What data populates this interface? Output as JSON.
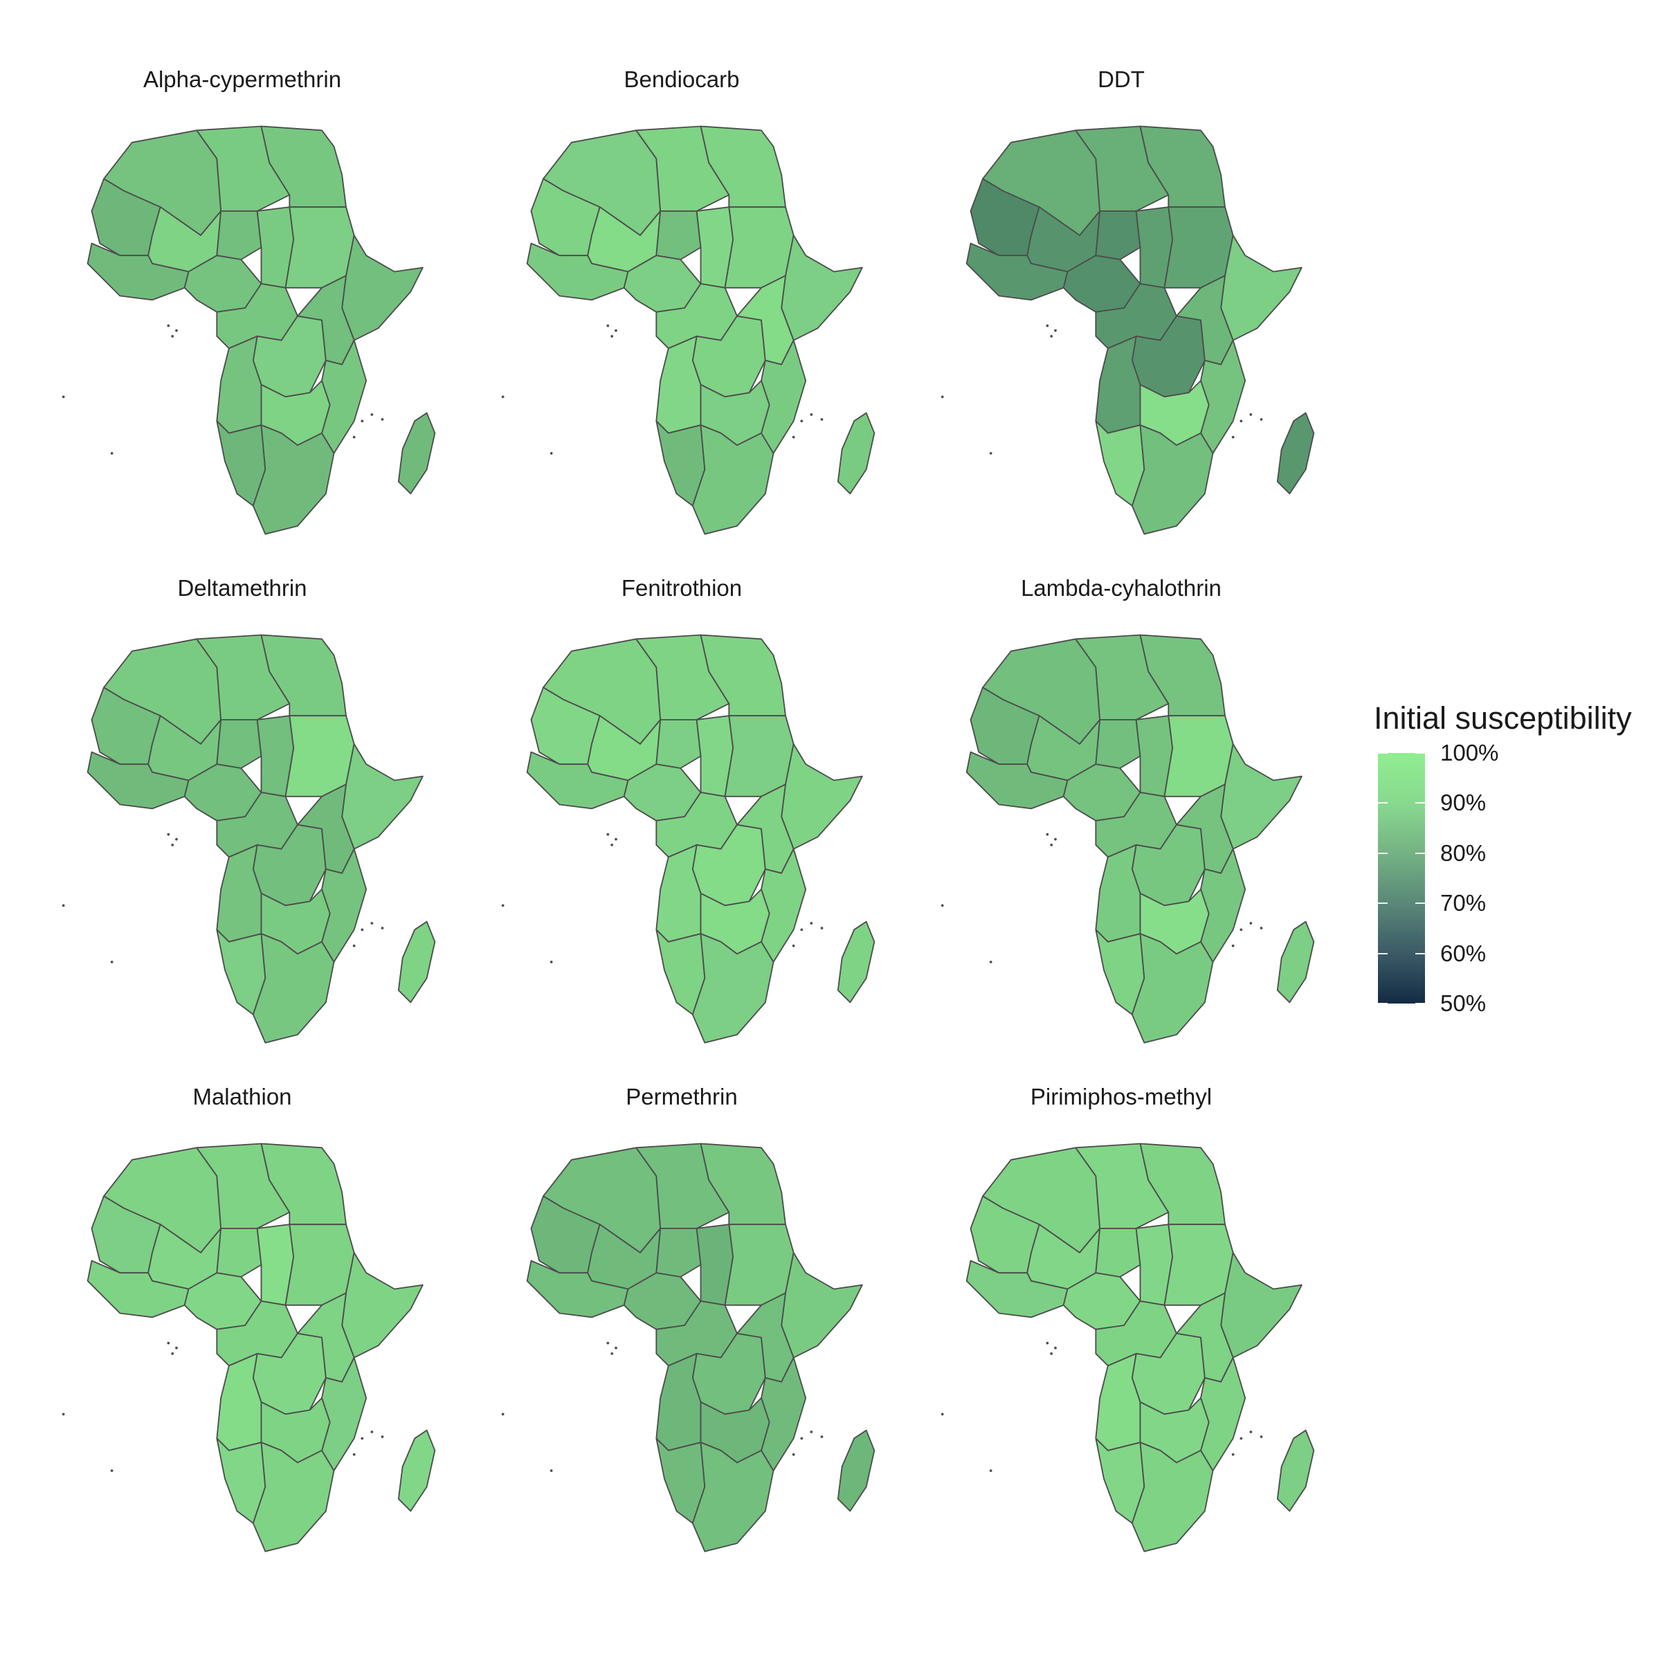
{
  "colors": {
    "scale_high": "#90ee90",
    "scale_low": "#132b43",
    "border": "#4d4d4d",
    "background": "#ffffff"
  },
  "legend": {
    "title": "Initial susceptibility",
    "ticks": [
      "100%",
      "90%",
      "80%",
      "70%",
      "60%",
      "50%"
    ],
    "tick_values": [
      100,
      90,
      80,
      70,
      60,
      50
    ],
    "range": [
      50,
      100
    ]
  },
  "chart_data": [
    {
      "type": "heatmap",
      "title": "Alpha-cypermethrin",
      "map": "Africa",
      "regions": {
        "north_west": 89,
        "north_central": 91,
        "east_north": 90,
        "mauritania": 86,
        "sahel_mid": 93,
        "niger": 88,
        "chad": 91,
        "sudan": 92,
        "west_coast": 87,
        "nigeria": 89,
        "horn": 88,
        "central_west": 90,
        "drc": 92,
        "east": 88,
        "angola": 89,
        "southeast": 90,
        "zambia_zim": 93,
        "southwest": 86,
        "south": 87,
        "madagascar": 87
      }
    },
    {
      "type": "heatmap",
      "title": "Bendiocarb",
      "map": "Africa",
      "regions": {
        "north_west": 92,
        "north_central": 93,
        "east_north": 93,
        "mauritania": 93,
        "sahel_mid": 95,
        "niger": 88,
        "chad": 94,
        "sudan": 93,
        "west_coast": 91,
        "nigeria": 92,
        "horn": 92,
        "central_west": 93,
        "drc": 93,
        "east": 95,
        "angola": 94,
        "southeast": 91,
        "zambia_zim": 92,
        "southwest": 87,
        "south": 90,
        "madagascar": 91
      }
    },
    {
      "type": "heatmap",
      "title": "DDT",
      "map": "Africa",
      "regions": {
        "north_west": 84,
        "north_central": 84,
        "east_north": 84,
        "mauritania": 74,
        "sahel_mid": 77,
        "niger": 76,
        "chad": 80,
        "sudan": 81,
        "west_coast": 78,
        "nigeria": 76,
        "horn": 92,
        "central_west": 78,
        "drc": 77,
        "east": 86,
        "angola": 80,
        "southeast": 89,
        "zambia_zim": 96,
        "southwest": 94,
        "south": 88,
        "madagascar": 78
      }
    },
    {
      "type": "heatmap",
      "title": "Deltamethrin",
      "map": "Africa",
      "regions": {
        "north_west": 91,
        "north_central": 91,
        "east_north": 91,
        "mauritania": 88,
        "sahel_mid": 90,
        "niger": 88,
        "chad": 88,
        "sudan": 95,
        "west_coast": 87,
        "nigeria": 88,
        "horn": 92,
        "central_west": 88,
        "drc": 88,
        "east": 87,
        "angola": 89,
        "southeast": 89,
        "zambia_zim": 91,
        "southwest": 92,
        "south": 90,
        "madagascar": 93
      }
    },
    {
      "type": "heatmap",
      "title": "Fenitrothion",
      "map": "Africa",
      "regions": {
        "north_west": 93,
        "north_central": 93,
        "east_north": 93,
        "mauritania": 94,
        "sahel_mid": 95,
        "niger": 92,
        "chad": 94,
        "sudan": 92,
        "west_coast": 91,
        "nigeria": 92,
        "horn": 93,
        "central_west": 93,
        "drc": 95,
        "east": 93,
        "angola": 94,
        "southeast": 93,
        "zambia_zim": 95,
        "southwest": 93,
        "south": 92,
        "madagascar": 93
      }
    },
    {
      "type": "heatmap",
      "title": "Lambda-cyhalothrin",
      "map": "Africa",
      "regions": {
        "north_west": 88,
        "north_central": 89,
        "east_north": 89,
        "mauritania": 86,
        "sahel_mid": 89,
        "niger": 88,
        "chad": 89,
        "sudan": 95,
        "west_coast": 87,
        "nigeria": 89,
        "horn": 92,
        "central_west": 89,
        "drc": 90,
        "east": 89,
        "angola": 91,
        "southeast": 90,
        "zambia_zim": 96,
        "southwest": 93,
        "south": 91,
        "madagascar": 92
      }
    },
    {
      "type": "heatmap",
      "title": "Malathion",
      "map": "Africa",
      "regions": {
        "north_west": 93,
        "north_central": 93,
        "east_north": 93,
        "mauritania": 92,
        "sahel_mid": 94,
        "niger": 93,
        "chad": 96,
        "sudan": 93,
        "west_coast": 93,
        "nigeria": 94,
        "horn": 93,
        "central_west": 93,
        "drc": 94,
        "east": 93,
        "angola": 95,
        "southeast": 92,
        "zambia_zim": 93,
        "southwest": 94,
        "south": 93,
        "madagascar": 94
      }
    },
    {
      "type": "heatmap",
      "title": "Permethrin",
      "map": "Africa",
      "regions": {
        "north_west": 88,
        "north_central": 88,
        "east_north": 90,
        "mauritania": 86,
        "sahel_mid": 87,
        "niger": 87,
        "chad": 85,
        "sudan": 91,
        "west_coast": 88,
        "nigeria": 87,
        "horn": 91,
        "central_west": 87,
        "drc": 88,
        "east": 88,
        "angola": 86,
        "southeast": 87,
        "zambia_zim": 86,
        "southwest": 87,
        "south": 88,
        "madagascar": 86
      }
    },
    {
      "type": "heatmap",
      "title": "Pirimiphos-methyl",
      "map": "Africa",
      "regions": {
        "north_west": 93,
        "north_central": 94,
        "east_north": 93,
        "mauritania": 93,
        "sahel_mid": 94,
        "niger": 93,
        "chad": 94,
        "sudan": 94,
        "west_coast": 92,
        "nigeria": 94,
        "horn": 91,
        "central_west": 93,
        "drc": 94,
        "east": 93,
        "angola": 95,
        "southeast": 93,
        "zambia_zim": 94,
        "southwest": 94,
        "south": 93,
        "madagascar": 92
      }
    }
  ]
}
